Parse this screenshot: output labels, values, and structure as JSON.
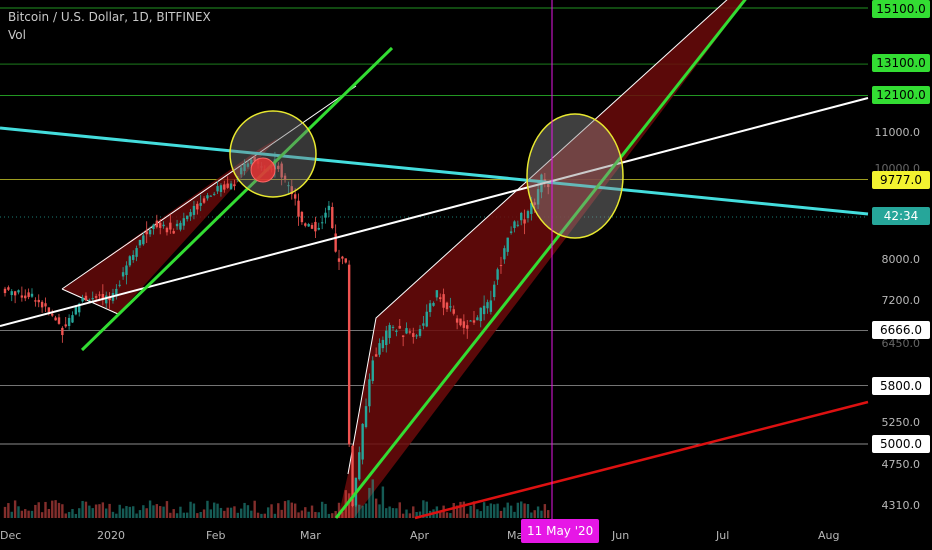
{
  "header": {
    "symbol": "Bitcoin / U.S. Dollar, 1D, BITFINEX",
    "indicator": "Vol"
  },
  "price_axis": {
    "ticks": [
      "11000.0",
      "10000.0",
      "8000.0",
      "7200.0",
      "6450.0",
      "5250.0",
      "4750.0",
      "4310.0"
    ],
    "labels": [
      {
        "text": "15100.0",
        "kind": "level-green"
      },
      {
        "text": "13100.0",
        "kind": "level-green"
      },
      {
        "text": "12100.0",
        "kind": "level-green"
      },
      {
        "text": "9777.0",
        "kind": "level-yellow"
      },
      {
        "text": "42:34",
        "kind": "countdown"
      },
      {
        "text": "6666.0",
        "kind": "level-white"
      },
      {
        "text": "5800.0",
        "kind": "level-white"
      },
      {
        "text": "5000.0",
        "kind": "level-white"
      }
    ]
  },
  "time_axis": {
    "ticks": [
      "Dec",
      "2020",
      "Feb",
      "Mar",
      "Apr",
      "Ma",
      "Jun",
      "Jul",
      "Aug"
    ],
    "crosshair_label": "11 May '20"
  },
  "colors": {
    "background": "#000000",
    "up": "#26a69a",
    "down": "#ef5350",
    "green_line": "#33dd33",
    "cyan_line": "#44dddd",
    "red_line": "#dd1111",
    "yellow_line": "#e8e830",
    "channel_fill": "#6b0a0a",
    "crosshair": "#e617e6"
  },
  "chart_data": {
    "type": "candlestick",
    "title": "Bitcoin / U.S. Dollar, 1D, BITFINEX",
    "x_range": [
      "2019-12-01",
      "2020-08-31"
    ],
    "y_scale": "log",
    "y_range": [
      4100,
      16000
    ],
    "horizontal_levels": [
      15100,
      13100,
      12100,
      9777,
      6666,
      5800,
      5000
    ],
    "current_price_countdown": "42:34",
    "crosshair_date": "11 May '20",
    "price_path": [
      [
        "2019-12-01",
        7400
      ],
      [
        "2019-12-10",
        7250
      ],
      [
        "2019-12-18",
        6700
      ],
      [
        "2019-12-24",
        7250
      ],
      [
        "2020-01-01",
        7200
      ],
      [
        "2020-01-07",
        8050
      ],
      [
        "2020-01-14",
        8750
      ],
      [
        "2020-01-20",
        8600
      ],
      [
        "2020-01-29",
        9350
      ],
      [
        "2020-02-08",
        9800
      ],
      [
        "2020-02-12",
        10300
      ],
      [
        "2020-02-16",
        10000
      ],
      [
        "2020-02-19",
        10150
      ],
      [
        "2020-02-23",
        9700
      ],
      [
        "2020-02-27",
        8800
      ],
      [
        "2020-03-02",
        8600
      ],
      [
        "2020-03-06",
        9100
      ],
      [
        "2020-03-08",
        8100
      ],
      [
        "2020-03-11",
        7900
      ],
      [
        "2020-03-12",
        5000
      ],
      [
        "2020-03-13",
        4300
      ],
      [
        "2020-03-16",
        5200
      ],
      [
        "2020-03-19",
        6200
      ],
      [
        "2020-03-24",
        6700
      ],
      [
        "2020-04-01",
        6600
      ],
      [
        "2020-04-07",
        7300
      ],
      [
        "2020-04-15",
        6700
      ],
      [
        "2020-04-22",
        7100
      ],
      [
        "2020-04-29",
        8700
      ],
      [
        "2020-05-03",
        8900
      ],
      [
        "2020-05-07",
        9400
      ],
      [
        "2020-05-08",
        9900
      ],
      [
        "2020-05-10",
        9650
      ]
    ],
    "volume_scale_max": 1
  }
}
